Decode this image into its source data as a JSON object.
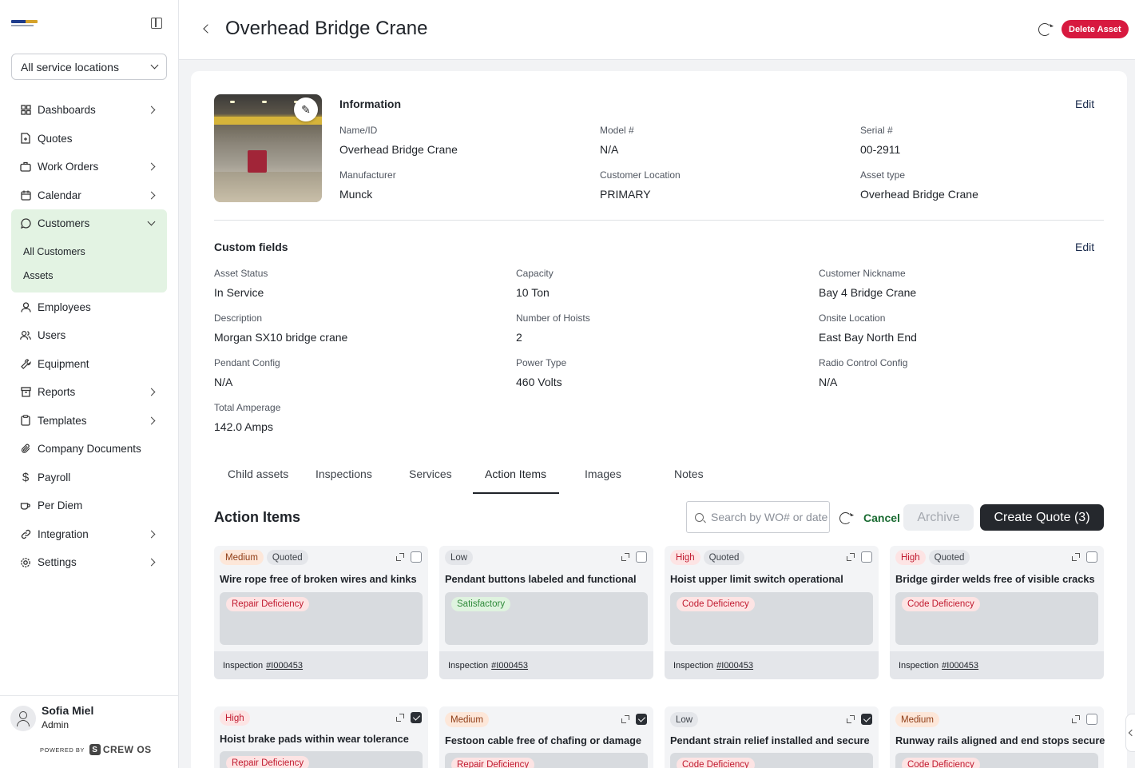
{
  "sidebar": {
    "location_select": "All service locations",
    "nav": [
      {
        "label": "Dashboards",
        "icon": "grid-icon",
        "arrow": true
      },
      {
        "label": "Quotes",
        "icon": "file-plus-icon",
        "arrow": false
      },
      {
        "label": "Work Orders",
        "icon": "briefcase-icon",
        "arrow": true
      },
      {
        "label": "Calendar",
        "icon": "calendar-icon",
        "arrow": true
      },
      {
        "label": "Customers",
        "icon": "chat-icon",
        "arrow": true
      }
    ],
    "customers_sub": [
      "All Customers",
      "Assets"
    ],
    "nav2": [
      {
        "label": "Employees",
        "icon": "user-icon"
      },
      {
        "label": "Users",
        "icon": "users-icon"
      },
      {
        "label": "Equipment",
        "icon": "wrench-icon"
      },
      {
        "label": "Reports",
        "icon": "archive-icon",
        "arrow": true
      },
      {
        "label": "Templates",
        "icon": "clipboard-icon",
        "arrow": true
      },
      {
        "label": "Company Documents",
        "icon": "paperclip-icon"
      },
      {
        "label": "Payroll",
        "icon": "dollar-icon"
      },
      {
        "label": "Per Diem",
        "icon": "coffee-icon"
      },
      {
        "label": "Integration",
        "icon": "link-icon",
        "arrow": true
      },
      {
        "label": "Settings",
        "icon": "gear-icon",
        "arrow": true
      }
    ],
    "user": {
      "name": "Sofia Miel",
      "role": "Admin"
    },
    "powered_by": "POWERED BY",
    "brand": "CREW OS"
  },
  "header": {
    "title": "Overhead Bridge Crane",
    "delete_label": "Delete Asset"
  },
  "information": {
    "title": "Information",
    "edit": "Edit",
    "fields": [
      {
        "label": "Name/ID",
        "value": "Overhead Bridge Crane"
      },
      {
        "label": "Model #",
        "value": "N/A"
      },
      {
        "label": "Serial #",
        "value": "00-2911"
      },
      {
        "label": "Manufacturer",
        "value": "Munck"
      },
      {
        "label": "Customer Location",
        "value": "PRIMARY"
      },
      {
        "label": "Asset type",
        "value": "Overhead Bridge Crane"
      }
    ]
  },
  "custom_fields": {
    "title": "Custom fields",
    "edit": "Edit",
    "fields": [
      {
        "label": "Asset Status",
        "value": "In Service"
      },
      {
        "label": "Capacity",
        "value": "10 Ton"
      },
      {
        "label": "Customer Nickname",
        "value": "Bay 4 Bridge Crane"
      },
      {
        "label": "Description",
        "value": "Morgan SX10 bridge crane"
      },
      {
        "label": "Number of Hoists",
        "value": "2"
      },
      {
        "label": "Onsite Location",
        "value": "East Bay North End"
      },
      {
        "label": "Pendant Config",
        "value": "N/A"
      },
      {
        "label": "Power Type",
        "value": "460 Volts"
      },
      {
        "label": "Radio Control Config",
        "value": "N/A"
      },
      {
        "label": "Total Amperage",
        "value": "142.0 Amps"
      }
    ]
  },
  "tabs": [
    "Child assets",
    "Inspections",
    "Services",
    "Action Items",
    "Images",
    "Notes"
  ],
  "action_items": {
    "title": "Action Items",
    "search_placeholder": "Search by WO# or date",
    "cancel": "Cancel",
    "archive": "Archive",
    "create_quote": "Create Quote (3)",
    "inspection_label": "Inspection",
    "items": [
      {
        "priority": "Medium",
        "quoted": "Quoted",
        "name": "Wire rope free of broken wires and kinks",
        "deficiency": "Repair Deficiency",
        "inspection": "#I000453",
        "checked": false
      },
      {
        "priority": "Low",
        "quoted": "",
        "name": "Pendant buttons labeled and functional",
        "deficiency": "Satisfactory",
        "inspection": "#I000453",
        "checked": false
      },
      {
        "priority": "High",
        "quoted": "Quoted",
        "name": "Hoist upper limit switch operational",
        "deficiency": "Code Deficiency",
        "inspection": "#I000453",
        "checked": false
      },
      {
        "priority": "High",
        "quoted": "Quoted",
        "name": "Bridge girder welds free of visible cracks",
        "deficiency": "Code Deficiency",
        "inspection": "#I000453",
        "checked": false
      },
      {
        "priority": "High",
        "quoted": "",
        "name": "Hoist brake pads within wear tolerance",
        "deficiency": "Repair Deficiency",
        "checked": true
      },
      {
        "priority": "Medium",
        "quoted": "",
        "name": "Festoon cable free of chafing or damage",
        "deficiency": "Repair Deficiency",
        "checked": true
      },
      {
        "priority": "Low",
        "quoted": "",
        "name": "Pendant strain relief installed and secure",
        "deficiency": "Code Deficiency",
        "checked": true
      },
      {
        "priority": "Medium",
        "quoted": "",
        "name": "Runway rails aligned and end stops secure",
        "deficiency": "Code Deficiency",
        "checked": false
      }
    ]
  }
}
